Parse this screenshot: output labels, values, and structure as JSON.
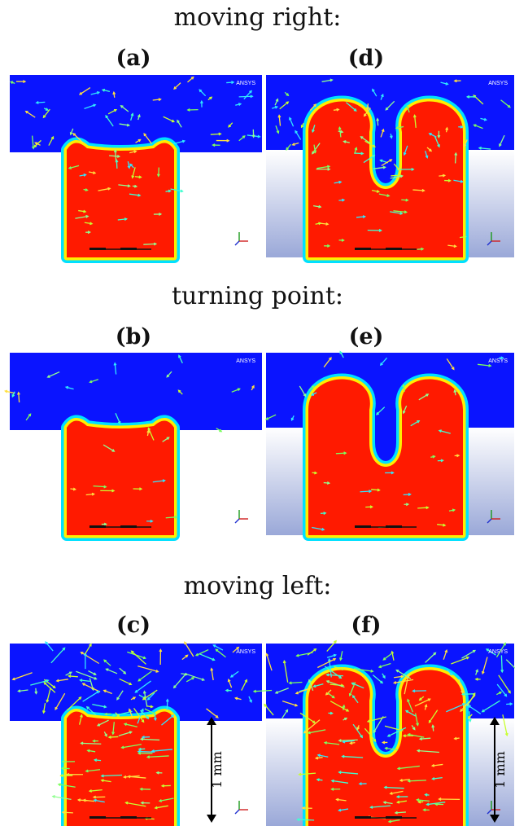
{
  "headings": {
    "moving_right": "moving right:",
    "turning_point": "turning point:",
    "moving_left": "moving left:"
  },
  "panels": [
    {
      "id": "a",
      "label": "(a)",
      "logo": "ANSYS",
      "shape": "shallow",
      "arrow_density": "medium"
    },
    {
      "id": "b",
      "label": "(b)",
      "logo": "ANSYS",
      "shape": "shallow",
      "arrow_density": "low"
    },
    {
      "id": "c",
      "label": "(c)",
      "logo": "ANSYS",
      "shape": "shallow",
      "arrow_density": "high"
    },
    {
      "id": "d",
      "label": "(d)",
      "logo": "ANSYS",
      "shape": "deep",
      "arrow_density": "medium"
    },
    {
      "id": "e",
      "label": "(e)",
      "logo": "ANSYS",
      "shape": "deep",
      "arrow_density": "low"
    },
    {
      "id": "f",
      "label": "(f)",
      "logo": "ANSYS",
      "shape": "deep",
      "arrow_density": "high"
    }
  ],
  "scale_bar": {
    "label": "1 mm"
  },
  "colors": {
    "gas": "#0a14ff",
    "liquid": "#ff1a00",
    "interface_outer": "#00e0ff",
    "interface_inner": "#ffee00",
    "wall_top": "#ffffff",
    "wall_bottom": "#9aa8d8"
  }
}
